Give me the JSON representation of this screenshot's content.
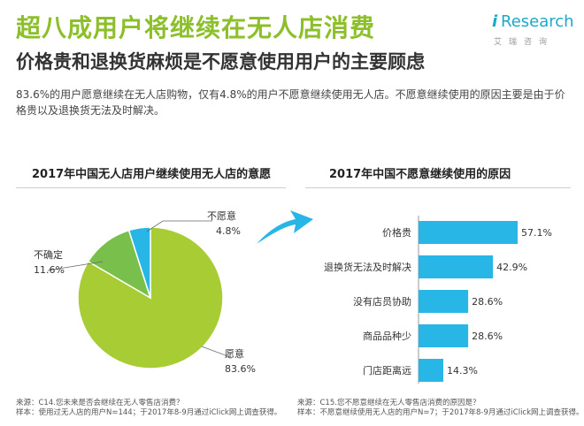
{
  "header": {
    "title": "超八成用户将继续在无人店消费",
    "subtitle": "价格贵和退换货麻烦是不愿意使用用户的主要顾虑",
    "logo_mark": "i",
    "logo_text": "Research",
    "logo_cn": "艾瑞咨询"
  },
  "intro": "83.6%的用户愿意继续在无人店购物，仅有4.8%的用户不愿意继续使用无人店。不愿意继续使用的原因主要是由于价格贵以及退换货无法及时解决。",
  "chart_data": [
    {
      "type": "pie",
      "title": "2017年中国无人店用户继续使用无人店的意愿",
      "slices": [
        {
          "label": "愿意",
          "value": 83.6,
          "value_label": "83.6%",
          "color": "#a8cc34"
        },
        {
          "label": "不确定",
          "value": 11.6,
          "value_label": "11.6%",
          "color": "#79bf4b"
        },
        {
          "label": "不愿意",
          "value": 4.8,
          "value_label": "4.8%",
          "color": "#27b6e6"
        }
      ]
    },
    {
      "type": "bar",
      "orientation": "horizontal",
      "title": "2017年中国不愿意继续使用的原因",
      "categories": [
        "价格贵",
        "退换货无法及时解决",
        "没有店员协助",
        "商品品种少",
        "门店距离远"
      ],
      "values": [
        57.1,
        42.9,
        28.6,
        28.6,
        14.3
      ],
      "value_labels": [
        "57.1%",
        "42.9%",
        "28.6%",
        "28.6%",
        "14.3%"
      ],
      "color": "#27b6e6",
      "xlim": [
        0,
        57.1
      ]
    }
  ],
  "footnotes": {
    "left": {
      "line1": "来源：C14.您未来是否会继续在无人零售店消费？",
      "line2": "样本：使用过无人店的用户N=144；于2017年8-9月通过iClick网上调查获得。"
    },
    "right": {
      "line1": "来源：C15.您不愿意继续在无人零售店消费的原因是？",
      "line2": "样本：不愿意继续使用无人店的用户N=7；于2017年8-9月通过iClick网上调查获得。"
    }
  }
}
